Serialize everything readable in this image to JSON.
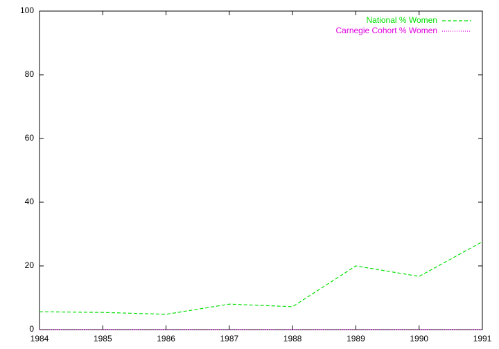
{
  "chart_data": {
    "type": "line",
    "x": [
      1984,
      1985,
      1986,
      1987,
      1988,
      1989,
      1990,
      1991
    ],
    "series": [
      {
        "name": "National % Women",
        "color": "#00e000",
        "dash": "dashed",
        "values": [
          5.6,
          5.4,
          4.8,
          8.0,
          7.2,
          20.0,
          16.7,
          27.6
        ]
      },
      {
        "name": "Carnegie Cohort % Women",
        "color": "#e000e0",
        "dash": "dotted",
        "values": [
          0,
          0,
          0,
          0,
          0,
          0,
          0,
          0
        ]
      }
    ],
    "xlim": [
      1984,
      1991
    ],
    "xticks": [
      1984,
      1985,
      1986,
      1987,
      1988,
      1989,
      1990,
      1991
    ],
    "ylim": [
      0,
      100
    ],
    "yticks": [
      0,
      20,
      40,
      60,
      80,
      100
    ],
    "grid": false,
    "legend": "top-right"
  }
}
